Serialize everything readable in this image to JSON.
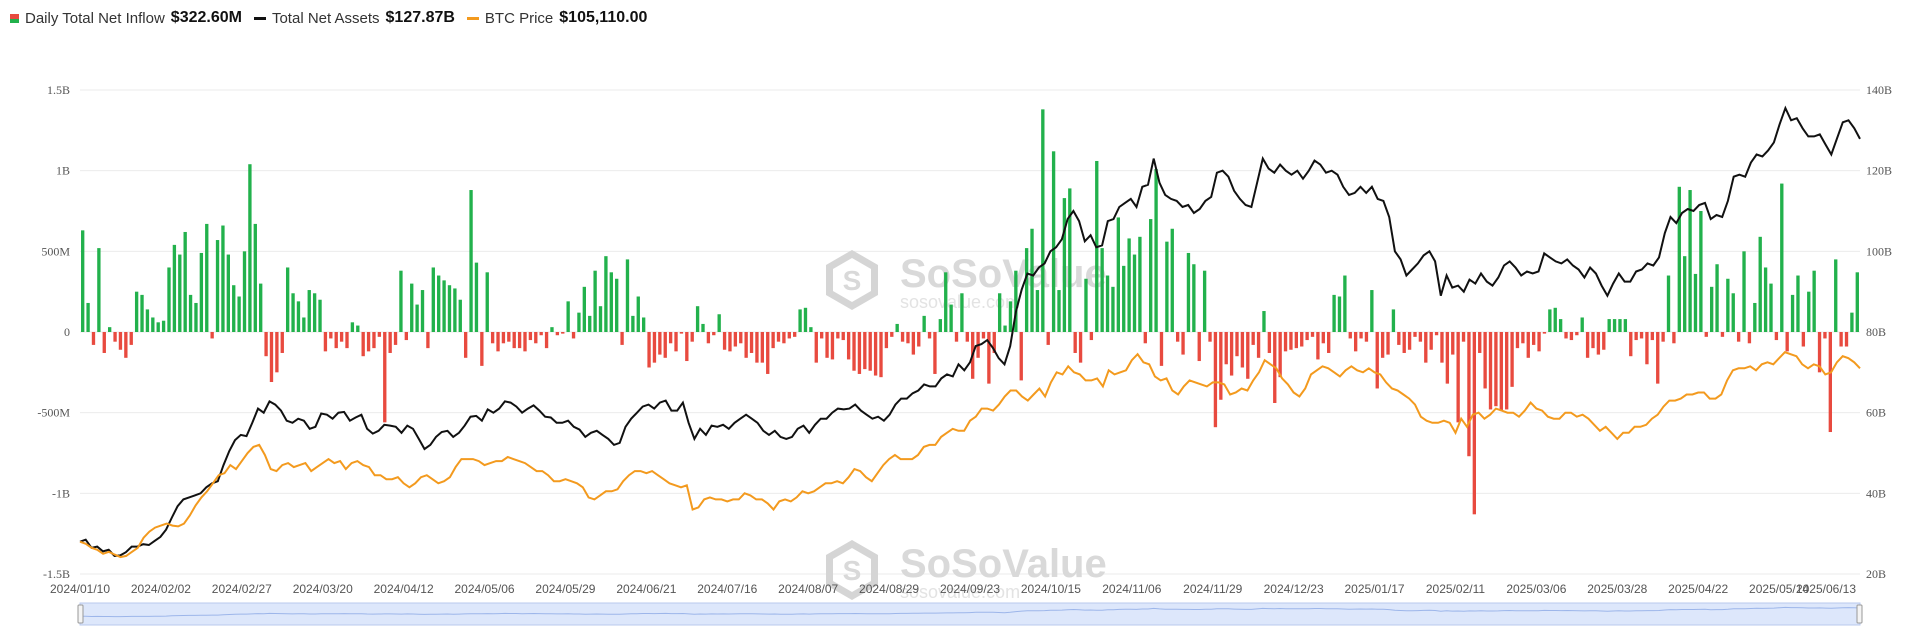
{
  "legend": {
    "inflow": {
      "label": "Daily Total Net Inflow",
      "value": "$322.60M"
    },
    "assets": {
      "label": "Total Net Assets",
      "value": "$127.87B"
    },
    "btc": {
      "label": "BTC Price",
      "value": "$105,110.00"
    }
  },
  "watermark": {
    "brand": "SoSoValue",
    "domain": "sosovalue.com"
  },
  "colors": {
    "inflow_pos": "#22b14c",
    "inflow_neg": "#e84a3f",
    "assets": "#111111",
    "btc": "#f39a1e",
    "navigator": "#c9d8f5"
  },
  "chart_data": {
    "type": "bar+line",
    "left_axis": {
      "ylim": [
        -1500000000,
        1500000000
      ],
      "ticks": [
        "1.5B",
        "1B",
        "500M",
        "0",
        "-500M",
        "-1B",
        "-1.5B"
      ]
    },
    "right_axis": {
      "ylim": [
        20,
        140
      ],
      "unit": "B",
      "ticks": [
        "140B",
        "120B",
        "100B",
        "80B",
        "60B",
        "40B",
        "20B"
      ]
    },
    "x_ticks": [
      "2024/01/10",
      "2024/02/02",
      "2024/02/27",
      "2024/03/20",
      "2024/04/12",
      "2024/05/06",
      "2024/05/29",
      "2024/06/21",
      "2024/07/16",
      "2024/08/07",
      "2024/08/29",
      "2024/09/23",
      "2024/10/15",
      "2024/11/06",
      "2024/11/29",
      "2024/12/23",
      "2025/01/17",
      "2025/02/11",
      "2025/03/06",
      "2025/03/28",
      "2025/04/22",
      "2025/05/14",
      "2025/06/13"
    ],
    "inflow_bars_M": [
      630,
      180,
      -80,
      520,
      -130,
      30,
      -60,
      -110,
      -160,
      -80,
      250,
      230,
      140,
      90,
      60,
      70,
      400,
      540,
      480,
      620,
      230,
      180,
      490,
      670,
      -40,
      570,
      660,
      480,
      290,
      220,
      500,
      1040,
      670,
      300,
      -150,
      -310,
      -250,
      -130,
      400,
      240,
      190,
      90,
      260,
      240,
      200,
      -120,
      -40,
      -100,
      -60,
      -100,
      60,
      40,
      -150,
      -120,
      -100,
      -30,
      -560,
      -130,
      -80,
      380,
      -50,
      300,
      170,
      260,
      -100,
      400,
      350,
      320,
      290,
      270,
      200,
      -160,
      880,
      430,
      -210,
      370,
      -70,
      -120,
      -70,
      -60,
      -100,
      -100,
      -120,
      -50,
      -70,
      -20,
      -100,
      30,
      -20,
      -10,
      190,
      -40,
      120,
      280,
      100,
      380,
      160,
      470,
      370,
      330,
      -80,
      450,
      100,
      220,
      90,
      -220,
      -190,
      -140,
      -160,
      -70,
      -120,
      -10,
      -180,
      -60,
      160,
      50,
      -70,
      -20,
      110,
      -110,
      -120,
      -90,
      -70,
      -160,
      -130,
      -190,
      -190,
      -260,
      -100,
      -60,
      -70,
      -40,
      -30,
      140,
      150,
      30,
      -190,
      -40,
      -160,
      -170,
      -40,
      -50,
      -170,
      -240,
      -260,
      -230,
      -240,
      -270,
      -280,
      -100,
      -30,
      50,
      -60,
      -70,
      -140,
      -90,
      100,
      -40,
      -260,
      80,
      370,
      170,
      -60,
      240,
      -60,
      -290,
      -160,
      -40,
      -320,
      -130,
      240,
      40,
      190,
      380,
      -300,
      520,
      640,
      260,
      1380,
      -80,
      1120,
      260,
      830,
      890,
      -130,
      -190,
      330,
      -50,
      1060,
      520,
      350,
      280,
      710,
      410,
      580,
      480,
      590,
      -70,
      700,
      1010,
      -210,
      560,
      640,
      -60,
      -140,
      490,
      420,
      -180,
      380,
      -60,
      -590,
      -420,
      -200,
      -270,
      -150,
      -220,
      -290,
      -80,
      -160,
      130,
      -130,
      -440,
      -280,
      -120,
      -110,
      -100,
      -90,
      -50,
      -30,
      -170,
      -70,
      -130,
      230,
      220,
      350,
      -40,
      -120,
      -40,
      -60,
      260,
      -350,
      -160,
      -140,
      140,
      -80,
      -130,
      -110,
      -30,
      -60,
      -190,
      -110,
      -20,
      -190,
      -320,
      -140,
      -560,
      -60,
      -770,
      -1130,
      -130,
      -350,
      -480,
      -460,
      -490,
      -480,
      -340,
      -100,
      -70,
      -160,
      -80,
      -120,
      -10,
      140,
      150,
      80,
      -40,
      -50,
      -20,
      90,
      -160,
      -100,
      -140,
      -110,
      80,
      80,
      80,
      80,
      -150,
      -50,
      -40,
      -200,
      -50,
      -320,
      -60,
      350,
      -70,
      900,
      470,
      880,
      360,
      750,
      -30,
      280,
      420,
      -30,
      330,
      240,
      -60,
      500,
      -70,
      180,
      590,
      400,
      300,
      -50,
      920,
      -120,
      230,
      350,
      -90,
      250,
      380,
      -250,
      -40,
      -620,
      450,
      -90,
      -90,
      120,
      370
    ],
    "assets_B": [
      28.0,
      28.5,
      26.5,
      26.8,
      25.6,
      26.0,
      24.5,
      24.6,
      25.4,
      26.8,
      26.8,
      27.4,
      27.2,
      28.2,
      29.2,
      31.0,
      34.0,
      36.8,
      38.5,
      39.0,
      39.5,
      40.0,
      41.5,
      42.5,
      43.0,
      47.0,
      50.5,
      53.2,
      54.5,
      54.2,
      57.5,
      61.0,
      60.0,
      62.8,
      62.0,
      60.5,
      58.0,
      57.5,
      58.5,
      58.0,
      56.0,
      56.5,
      59.8,
      59.5,
      58.5,
      60.0,
      60.2,
      58.0,
      58.8,
      59.5,
      56.0,
      54.8,
      55.5,
      57.0,
      56.8,
      56.5,
      55.0,
      56.8,
      56.0,
      53.5,
      51.0,
      52.0,
      54.0,
      55.2,
      55.5,
      54.0,
      55.0,
      56.8,
      59.0,
      59.2,
      58.0,
      60.8,
      60.0,
      61.0,
      62.8,
      62.5,
      61.5,
      60.0,
      61.0,
      61.8,
      60.5,
      59.0,
      58.8,
      57.5,
      57.5,
      58.0,
      56.5,
      55.8,
      54.0,
      55.0,
      55.5,
      54.5,
      53.5,
      52.0,
      52.5,
      56.5,
      58.5,
      60.0,
      61.5,
      62.0,
      61.0,
      62.5,
      63.0,
      60.5,
      60.5,
      62.5,
      57.5,
      53.5,
      56.0,
      54.5,
      56.8,
      56.5,
      57.0,
      56.0,
      57.5,
      58.5,
      59.5,
      58.5,
      57.5,
      55.5,
      54.5,
      55.5,
      54.0,
      53.5,
      54.0,
      56.0,
      56.8,
      55.0,
      57.0,
      58.5,
      58.5,
      60.0,
      61.0,
      60.8,
      61.0,
      62.0,
      60.5,
      59.5,
      58.5,
      59.0,
      58.0,
      59.5,
      62.0,
      63.5,
      63.5,
      64.8,
      65.5,
      67.0,
      66.5,
      66.5,
      68.5,
      69.5,
      69.0,
      72.0,
      70.5,
      72.5,
      76.5,
      77.0,
      78.0,
      76.0,
      73.5,
      72.0,
      76.5,
      85.0,
      90.5,
      94.5,
      94.0,
      96.0,
      97.0,
      100.0,
      101.0,
      103.0,
      108.0,
      110.0,
      107.5,
      102.5,
      104.0,
      101.0,
      101.5,
      107.5,
      108.0,
      111.0,
      112.0,
      113.0,
      111.0,
      116.0,
      116.5,
      123.0,
      117.0,
      114.0,
      113.0,
      112.5,
      111.0,
      111.5,
      109.5,
      110.5,
      112.5,
      113.5,
      119.5,
      120.0,
      118.5,
      115.0,
      113.0,
      111.5,
      111.0,
      117.0,
      123.0,
      120.5,
      119.5,
      121.5,
      120.0,
      119.0,
      120.0,
      118.0,
      120.0,
      122.5,
      121.5,
      119.5,
      120.0,
      119.0,
      116.0,
      114.0,
      114.5,
      116.0,
      114.5,
      116.0,
      113.0,
      112.5,
      108.5,
      100.0,
      98.0,
      94.0,
      95.5,
      97.0,
      99.0,
      100.0,
      97.5,
      89.0,
      94.0,
      91.0,
      91.5,
      90.0,
      93.0,
      92.0,
      94.5,
      92.5,
      91.5,
      93.5,
      96.5,
      97.5,
      96.0,
      94.0,
      95.0,
      94.5,
      95.0,
      99.5,
      98.5,
      97.5,
      97.0,
      98.0,
      96.5,
      95.5,
      93.5,
      96.0,
      94.5,
      91.5,
      89.0,
      92.0,
      94.5,
      92.5,
      92.5,
      95.0,
      95.5,
      97.0,
      96.5,
      98.5,
      104.5,
      108.5,
      107.0,
      109.5,
      110.5,
      110.0,
      111.5,
      112.0,
      108.0,
      109.0,
      108.5,
      112.5,
      118.5,
      119.0,
      118.5,
      122.0,
      124.0,
      123.5,
      125.0,
      127.0,
      131.5,
      135.5,
      132.5,
      133.0,
      130.5,
      128.5,
      128.5,
      129.0,
      126.5,
      124.0,
      128.0,
      132.0,
      132.5,
      130.5,
      127.87
    ],
    "btc_B": [
      28.0,
      27.5,
      26.5,
      26.0,
      25.0,
      25.5,
      24.8,
      24.2,
      24.5,
      25.5,
      26.5,
      29.0,
      30.5,
      31.5,
      32.0,
      32.5,
      32.0,
      31.8,
      32.5,
      34.5,
      37.0,
      39.0,
      40.5,
      42.5,
      44.5,
      45.0,
      47.0,
      46.0,
      48.0,
      50.0,
      51.5,
      52.0,
      49.5,
      46.0,
      45.5,
      47.0,
      47.5,
      46.5,
      47.0,
      47.5,
      45.5,
      46.5,
      47.5,
      48.5,
      47.5,
      48.0,
      46.0,
      47.5,
      48.0,
      47.0,
      46.5,
      44.5,
      44.5,
      43.5,
      43.5,
      44.0,
      42.5,
      41.5,
      42.5,
      44.0,
      44.5,
      43.5,
      42.5,
      43.0,
      44.0,
      46.5,
      48.5,
      48.5,
      48.5,
      48.0,
      47.0,
      47.5,
      48.0,
      48.0,
      49.0,
      48.5,
      48.0,
      47.5,
      46.5,
      45.5,
      45.5,
      44.5,
      43.0,
      43.0,
      43.5,
      43.0,
      42.5,
      41.5,
      39.0,
      38.5,
      39.5,
      40.5,
      40.5,
      41.0,
      43.0,
      44.5,
      45.5,
      45.5,
      45.0,
      45.5,
      44.5,
      43.5,
      42.5,
      42.0,
      41.5,
      42.0,
      36.0,
      36.5,
      38.5,
      39.0,
      38.5,
      38.5,
      38.0,
      38.5,
      38.5,
      40.0,
      39.5,
      38.5,
      38.5,
      37.5,
      36.0,
      38.0,
      38.5,
      38.0,
      39.0,
      40.5,
      40.0,
      40.5,
      41.5,
      42.5,
      42.5,
      43.0,
      42.5,
      44.0,
      46.0,
      45.5,
      44.0,
      43.0,
      45.0,
      47.0,
      48.5,
      49.5,
      48.5,
      48.5,
      48.5,
      49.5,
      51.5,
      52.0,
      52.0,
      54.0,
      55.0,
      56.0,
      55.5,
      55.5,
      58.0,
      59.0,
      61.0,
      61.0,
      60.5,
      62.0,
      64.0,
      65.5,
      65.5,
      64.0,
      63.0,
      64.5,
      66.0,
      64.0,
      67.5,
      70.0,
      69.5,
      71.5,
      70.0,
      69.5,
      68.0,
      68.0,
      68.5,
      66.5,
      70.5,
      69.5,
      70.0,
      70.5,
      73.0,
      74.5,
      72.5,
      72.0,
      69.0,
      68.0,
      68.5,
      65.5,
      64.5,
      66.5,
      68.0,
      67.5,
      67.0,
      66.5,
      67.5,
      67.5,
      67.0,
      64.5,
      65.0,
      66.0,
      65.5,
      68.0,
      70.0,
      73.0,
      72.0,
      71.0,
      68.5,
      67.0,
      65.0,
      64.0,
      66.0,
      69.5,
      70.5,
      71.5,
      71.0,
      70.0,
      69.0,
      70.5,
      71.5,
      70.5,
      70.0,
      71.0,
      70.0,
      69.5,
      67.5,
      66.0,
      65.5,
      64.5,
      63.5,
      62.0,
      59.0,
      58.0,
      57.5,
      57.5,
      58.0,
      57.5,
      55.0,
      58.5,
      56.5,
      59.5,
      60.0,
      58.5,
      59.5,
      61.0,
      60.5,
      60.0,
      60.0,
      59.0,
      60.5,
      62.5,
      61.0,
      60.5,
      59.0,
      58.5,
      58.5,
      60.0,
      60.0,
      59.0,
      59.5,
      58.5,
      57.0,
      55.5,
      56.5,
      55.0,
      53.5,
      55.0,
      55.0,
      56.5,
      56.5,
      57.0,
      58.5,
      59.5,
      61.5,
      63.0,
      63.0,
      63.5,
      64.5,
      64.5,
      65.0,
      65.0,
      63.5,
      63.5,
      64.5,
      68.0,
      70.5,
      71.0,
      71.0,
      71.5,
      70.5,
      72.0,
      72.5,
      72.0,
      73.5,
      75.0,
      74.5,
      74.0,
      72.0,
      71.0,
      72.0,
      71.5,
      69.5,
      70.0,
      72.5,
      74.0,
      73.5,
      72.5,
      71.0
    ]
  }
}
